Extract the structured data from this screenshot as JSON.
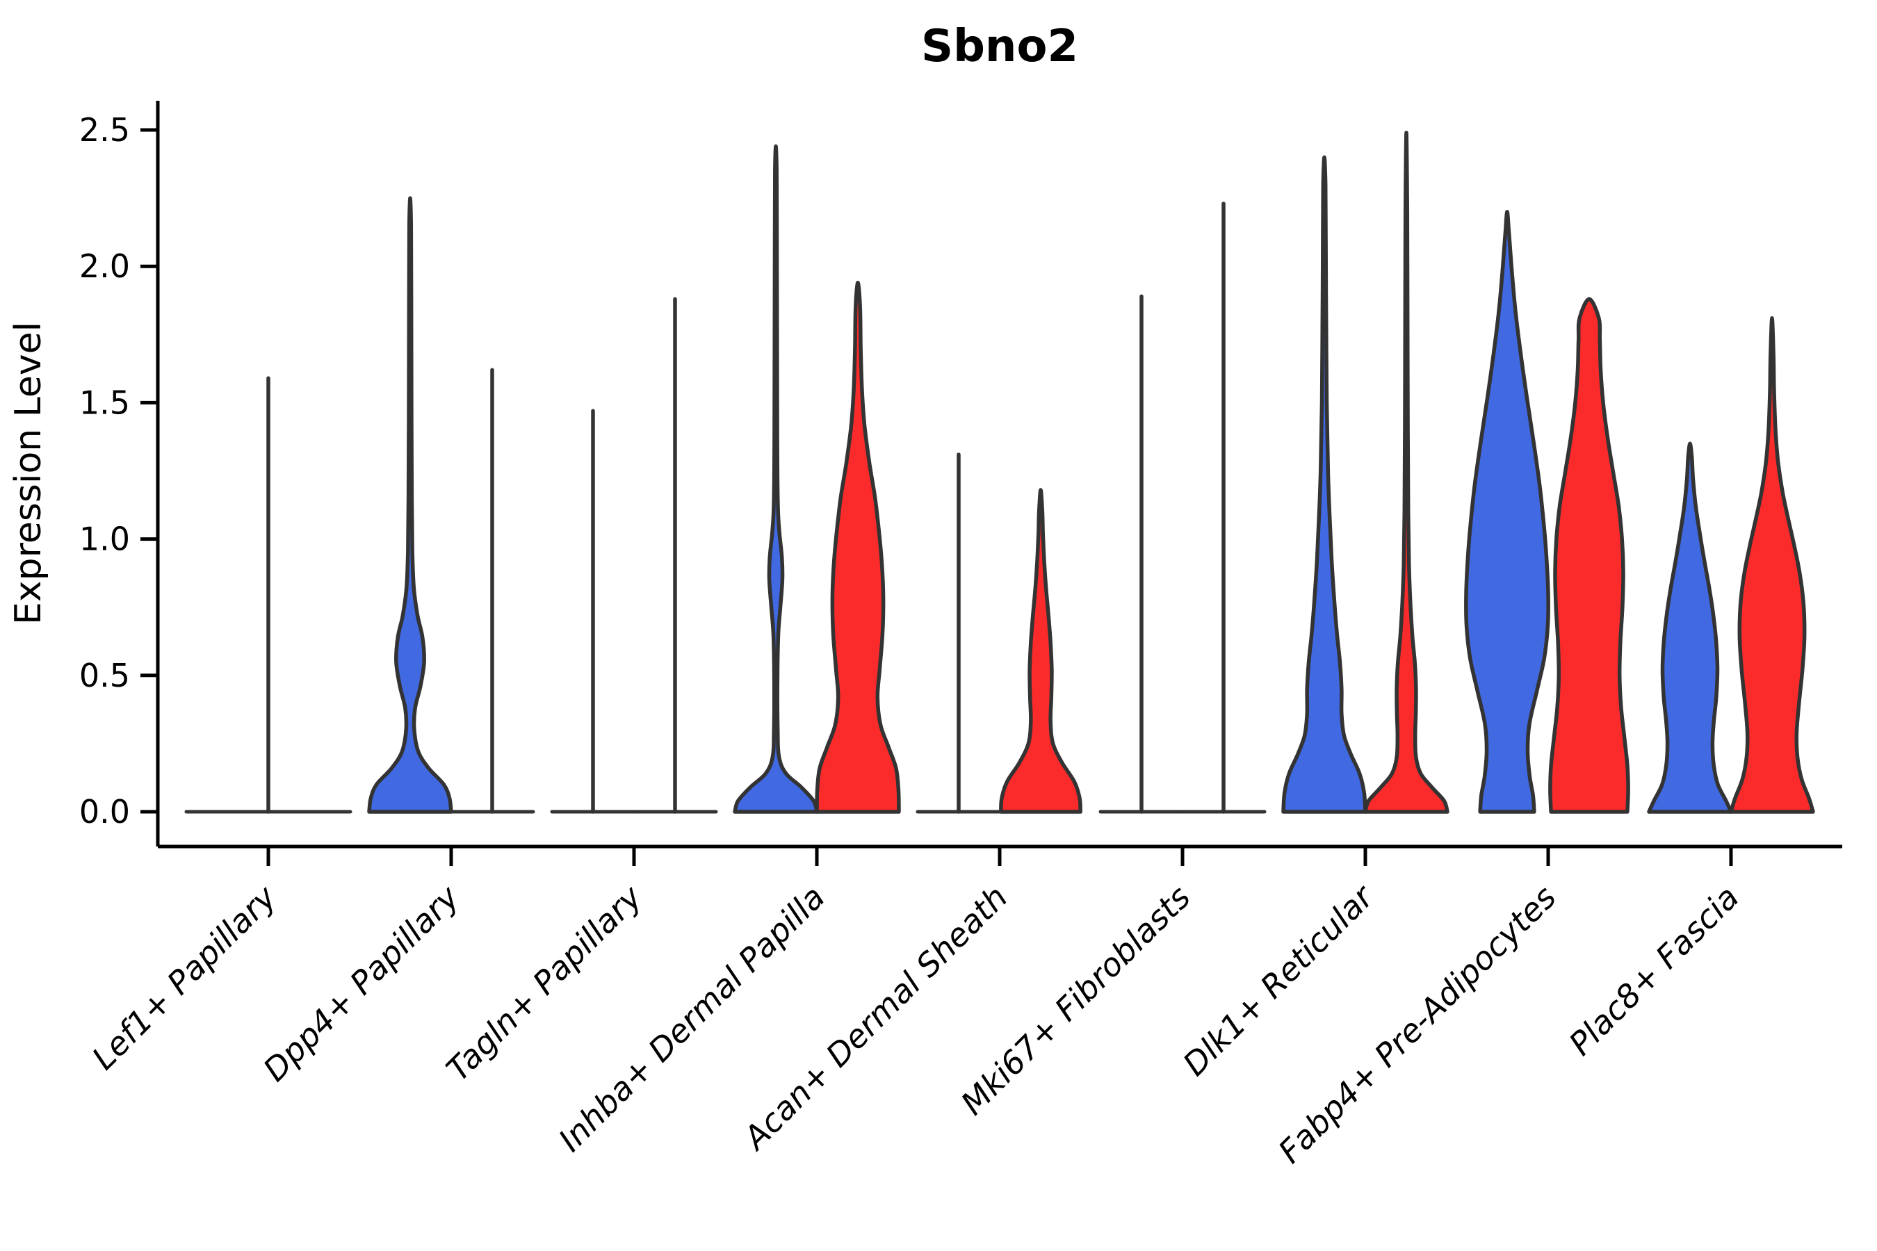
{
  "title": "Sbno2",
  "axes": {
    "y_label": "Expression Level",
    "y_tick_labels": [
      "0.0",
      "0.5",
      "1.0",
      "1.5",
      "2.0",
      "2.5"
    ]
  },
  "colors": {
    "blue": "#4169E1",
    "red": "#FB2B2B",
    "outline": "#333333",
    "background": "#FFFFFF"
  },
  "chart_data": {
    "type": "violin",
    "title": "Sbno2",
    "xlabel": "",
    "ylabel": "Expression Level",
    "ylim": [
      0,
      2.5
    ],
    "y_ticks": [
      0,
      0.5,
      1.0,
      1.5,
      2.0,
      2.5
    ],
    "legend": "none",
    "grid": false,
    "split_colors": {
      "left": "#4169E1",
      "right": "#FB2B2B"
    },
    "categories": [
      "Lef1+ Papillary",
      "Dpp4+ Papillary",
      "Tagln+ Papillary",
      "Inhba+ Dermal Papilla",
      "Acan+ Dermal Sheath",
      "Mki67+ Fibroblasts",
      "Dlk1+ Reticular",
      "Fabp4+ Pre-Adipocytes",
      "Plac8+ Fascia"
    ],
    "series": [
      {
        "name": "blue",
        "color": "#4169E1",
        "max_expression": [
          1.59,
          2.25,
          1.47,
          2.44,
          1.31,
          1.89,
          2.4,
          2.2,
          1.35
        ]
      },
      {
        "name": "red",
        "color": "#FB2B2B",
        "max_expression": [
          null,
          1.62,
          1.88,
          1.94,
          1.18,
          2.23,
          2.49,
          1.88,
          1.81
        ]
      }
    ],
    "violins": [
      {
        "category": "Lef1+ Papillary",
        "items": [
          {
            "split": "center",
            "flat": true,
            "max": 1.59,
            "width_mult": 2
          }
        ]
      },
      {
        "category": "Dpp4+ Papillary",
        "items": [
          {
            "split": "left",
            "color": "blue",
            "flat": false,
            "max": 2.25,
            "profile": [
              [
                0,
                1.0
              ],
              [
                0.05,
                0.96
              ],
              [
                0.1,
                0.82
              ],
              [
                0.16,
                0.45
              ],
              [
                0.22,
                0.2
              ],
              [
                0.3,
                0.1
              ],
              [
                0.38,
                0.12
              ],
              [
                0.46,
                0.25
              ],
              [
                0.55,
                0.34
              ],
              [
                0.64,
                0.3
              ],
              [
                0.72,
                0.18
              ],
              [
                0.82,
                0.09
              ],
              [
                0.95,
                0.055
              ],
              [
                1.15,
                0.04
              ],
              [
                1.5,
                0.032
              ],
              [
                1.9,
                0.027
              ],
              [
                2.15,
                0.022
              ],
              [
                2.25,
                0
              ]
            ]
          },
          {
            "split": "right",
            "flat": true,
            "max": 1.62
          }
        ]
      },
      {
        "category": "Tagln+ Papillary",
        "items": [
          {
            "split": "left",
            "flat": true,
            "max": 1.47
          },
          {
            "split": "right",
            "flat": true,
            "max": 1.88
          }
        ]
      },
      {
        "category": "Inhba+ Dermal Papilla",
        "items": [
          {
            "split": "left",
            "color": "blue",
            "flat": false,
            "max": 2.44,
            "profile": [
              [
                0,
                1.0
              ],
              [
                0.04,
                0.92
              ],
              [
                0.09,
                0.62
              ],
              [
                0.14,
                0.25
              ],
              [
                0.2,
                0.08
              ],
              [
                0.3,
                0.045
              ],
              [
                0.5,
                0.04
              ],
              [
                0.65,
                0.06
              ],
              [
                0.75,
                0.11
              ],
              [
                0.85,
                0.16
              ],
              [
                0.93,
                0.15
              ],
              [
                1.02,
                0.09
              ],
              [
                1.12,
                0.05
              ],
              [
                1.35,
                0.035
              ],
              [
                1.7,
                0.03
              ],
              [
                2.1,
                0.025
              ],
              [
                2.35,
                0.02
              ],
              [
                2.44,
                0
              ]
            ]
          },
          {
            "split": "right",
            "color": "red",
            "flat": false,
            "max": 1.94,
            "profile": [
              [
                0,
                1.0
              ],
              [
                0.08,
                0.99
              ],
              [
                0.16,
                0.93
              ],
              [
                0.24,
                0.74
              ],
              [
                0.32,
                0.55
              ],
              [
                0.42,
                0.48
              ],
              [
                0.52,
                0.53
              ],
              [
                0.65,
                0.6
              ],
              [
                0.78,
                0.62
              ],
              [
                0.9,
                0.59
              ],
              [
                1.02,
                0.52
              ],
              [
                1.15,
                0.42
              ],
              [
                1.28,
                0.28
              ],
              [
                1.42,
                0.16
              ],
              [
                1.55,
                0.1
              ],
              [
                1.7,
                0.07
              ],
              [
                1.85,
                0.055
              ],
              [
                1.94,
                0
              ]
            ]
          }
        ]
      },
      {
        "category": "Acan+ Dermal Sheath",
        "items": [
          {
            "split": "left",
            "flat": true,
            "max": 1.31
          },
          {
            "split": "right",
            "color": "red",
            "flat": false,
            "max": 1.18,
            "profile": [
              [
                0,
                0.97
              ],
              [
                0.05,
                0.95
              ],
              [
                0.11,
                0.82
              ],
              [
                0.18,
                0.52
              ],
              [
                0.25,
                0.3
              ],
              [
                0.33,
                0.24
              ],
              [
                0.42,
                0.26
              ],
              [
                0.52,
                0.27
              ],
              [
                0.62,
                0.24
              ],
              [
                0.72,
                0.19
              ],
              [
                0.82,
                0.13
              ],
              [
                0.92,
                0.085
              ],
              [
                1.02,
                0.055
              ],
              [
                1.1,
                0.04
              ],
              [
                1.18,
                0
              ]
            ]
          }
        ]
      },
      {
        "category": "Mki67+ Fibroblasts",
        "items": [
          {
            "split": "left",
            "flat": true,
            "max": 1.89
          },
          {
            "split": "right",
            "flat": true,
            "max": 2.23
          }
        ]
      },
      {
        "category": "Dlk1+ Reticular",
        "items": [
          {
            "split": "left",
            "color": "blue",
            "flat": false,
            "max": 2.4,
            "profile": [
              [
                0,
                1.0
              ],
              [
                0.07,
                0.97
              ],
              [
                0.14,
                0.86
              ],
              [
                0.21,
                0.65
              ],
              [
                0.28,
                0.48
              ],
              [
                0.36,
                0.42
              ],
              [
                0.45,
                0.42
              ],
              [
                0.55,
                0.38
              ],
              [
                0.65,
                0.31
              ],
              [
                0.78,
                0.24
              ],
              [
                0.92,
                0.18
              ],
              [
                1.08,
                0.13
              ],
              [
                1.25,
                0.09
              ],
              [
                1.5,
                0.06
              ],
              [
                1.8,
                0.045
              ],
              [
                2.1,
                0.035
              ],
              [
                2.3,
                0.028
              ],
              [
                2.4,
                0
              ]
            ]
          },
          {
            "split": "right",
            "color": "red",
            "flat": false,
            "max": 2.49,
            "profile": [
              [
                0,
                1.0
              ],
              [
                0.04,
                0.92
              ],
              [
                0.09,
                0.62
              ],
              [
                0.14,
                0.35
              ],
              [
                0.2,
                0.235
              ],
              [
                0.28,
                0.215
              ],
              [
                0.36,
                0.23
              ],
              [
                0.45,
                0.235
              ],
              [
                0.54,
                0.21
              ],
              [
                0.64,
                0.15
              ],
              [
                0.76,
                0.1
              ],
              [
                0.9,
                0.065
              ],
              [
                1.1,
                0.045
              ],
              [
                1.4,
                0.035
              ],
              [
                1.8,
                0.028
              ],
              [
                2.2,
                0.022
              ],
              [
                2.49,
                0
              ]
            ]
          }
        ]
      },
      {
        "category": "Fabp4+ Pre-Adipocytes",
        "items": [
          {
            "split": "left",
            "color": "blue",
            "flat": false,
            "max": 2.2,
            "profile": [
              [
                0,
                0.66
              ],
              [
                0.06,
                0.63
              ],
              [
                0.13,
                0.55
              ],
              [
                0.22,
                0.5
              ],
              [
                0.32,
                0.54
              ],
              [
                0.44,
                0.72
              ],
              [
                0.56,
                0.9
              ],
              [
                0.68,
                0.99
              ],
              [
                0.8,
                1.0
              ],
              [
                0.93,
                0.96
              ],
              [
                1.06,
                0.89
              ],
              [
                1.2,
                0.79
              ],
              [
                1.36,
                0.64
              ],
              [
                1.52,
                0.48
              ],
              [
                1.68,
                0.33
              ],
              [
                1.84,
                0.2
              ],
              [
                2.0,
                0.105
              ],
              [
                2.12,
                0.045
              ],
              [
                2.2,
                0
              ]
            ]
          },
          {
            "split": "right",
            "color": "red",
            "flat": false,
            "max": 1.88,
            "profile": [
              [
                0,
                0.93
              ],
              [
                0.08,
                0.95
              ],
              [
                0.17,
                0.93
              ],
              [
                0.27,
                0.86
              ],
              [
                0.38,
                0.78
              ],
              [
                0.5,
                0.74
              ],
              [
                0.62,
                0.76
              ],
              [
                0.75,
                0.81
              ],
              [
                0.88,
                0.83
              ],
              [
                1.0,
                0.8
              ],
              [
                1.12,
                0.72
              ],
              [
                1.24,
                0.59
              ],
              [
                1.37,
                0.45
              ],
              [
                1.5,
                0.34
              ],
              [
                1.62,
                0.28
              ],
              [
                1.73,
                0.26
              ],
              [
                1.81,
                0.235
              ],
              [
                1.88,
                0
              ]
            ]
          }
        ]
      },
      {
        "category": "Plac8+ Fascia",
        "items": [
          {
            "split": "left",
            "color": "blue",
            "flat": false,
            "max": 1.35,
            "profile": [
              [
                0,
                1.0
              ],
              [
                0.04,
                0.88
              ],
              [
                0.1,
                0.68
              ],
              [
                0.17,
                0.58
              ],
              [
                0.25,
                0.55
              ],
              [
                0.33,
                0.58
              ],
              [
                0.42,
                0.64
              ],
              [
                0.52,
                0.67
              ],
              [
                0.62,
                0.64
              ],
              [
                0.72,
                0.57
              ],
              [
                0.82,
                0.47
              ],
              [
                0.92,
                0.35
              ],
              [
                1.02,
                0.24
              ],
              [
                1.12,
                0.14
              ],
              [
                1.22,
                0.075
              ],
              [
                1.3,
                0.045
              ],
              [
                1.35,
                0
              ]
            ]
          },
          {
            "split": "right",
            "color": "red",
            "flat": false,
            "max": 1.81,
            "profile": [
              [
                0,
                1.0
              ],
              [
                0.05,
                0.9
              ],
              [
                0.12,
                0.72
              ],
              [
                0.2,
                0.62
              ],
              [
                0.29,
                0.6
              ],
              [
                0.4,
                0.66
              ],
              [
                0.52,
                0.74
              ],
              [
                0.64,
                0.79
              ],
              [
                0.76,
                0.77
              ],
              [
                0.87,
                0.68
              ],
              [
                0.97,
                0.55
              ],
              [
                1.07,
                0.4
              ],
              [
                1.17,
                0.26
              ],
              [
                1.28,
                0.15
              ],
              [
                1.4,
                0.085
              ],
              [
                1.55,
                0.05
              ],
              [
                1.68,
                0.035
              ],
              [
                1.81,
                0
              ]
            ]
          }
        ]
      }
    ]
  }
}
